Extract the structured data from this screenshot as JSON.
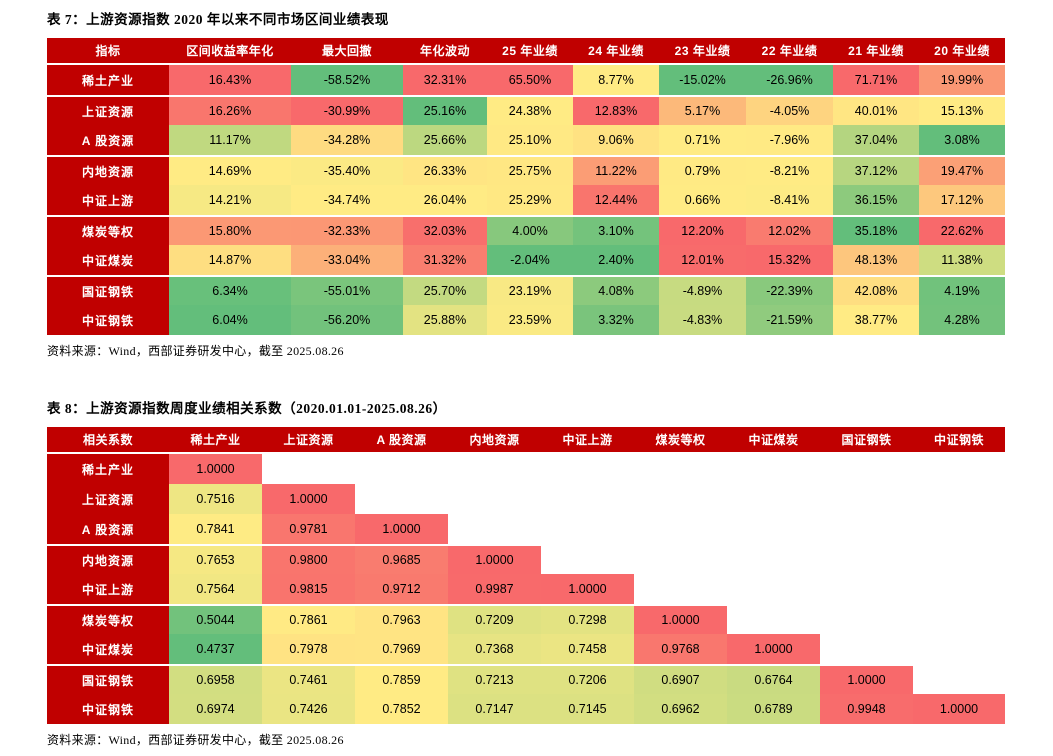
{
  "colors": {
    "header_bg": "#C00000",
    "header_text": "#FFFFFF",
    "cell_text": "#000000",
    "scale_low_green": "#63BE7B",
    "scale_mid_yellow": "#FFEB84",
    "scale_high_red": "#F8696B"
  },
  "table7": {
    "title": "表 7：上游资源指数 2020 年以来不同市场区间业绩表现",
    "source": "资料来源：Wind，西部证券研发中心，截至 2025.08.26",
    "scale_mode": "per-column",
    "columns": [
      "指标",
      "区间收益率年化",
      "最大回撤",
      "年化波动",
      "25 年业绩",
      "24 年业绩",
      "23 年业绩",
      "22 年业绩",
      "21 年业绩",
      "20 年业绩"
    ],
    "group_breaks": [
      1,
      3,
      5,
      7
    ],
    "rows": [
      {
        "label": "稀土产业",
        "cells": [
          "16.43%",
          "-58.52%",
          "32.31%",
          "65.50%",
          "8.77%",
          "-15.02%",
          "-26.96%",
          "71.71%",
          "19.99%"
        ]
      },
      {
        "label": "上证资源",
        "cells": [
          "16.26%",
          "-30.99%",
          "25.16%",
          "24.38%",
          "12.83%",
          "5.17%",
          "-4.05%",
          "40.01%",
          "15.13%"
        ]
      },
      {
        "label": "A 股资源",
        "cells": [
          "11.17%",
          "-34.28%",
          "25.66%",
          "25.10%",
          "9.06%",
          "0.71%",
          "-7.96%",
          "37.04%",
          "3.08%"
        ]
      },
      {
        "label": "内地资源",
        "cells": [
          "14.69%",
          "-35.40%",
          "26.33%",
          "25.75%",
          "11.22%",
          "0.79%",
          "-8.21%",
          "37.12%",
          "19.47%"
        ]
      },
      {
        "label": "中证上游",
        "cells": [
          "14.21%",
          "-34.74%",
          "26.04%",
          "25.29%",
          "12.44%",
          "0.66%",
          "-8.41%",
          "36.15%",
          "17.12%"
        ]
      },
      {
        "label": "煤炭等权",
        "cells": [
          "15.80%",
          "-32.33%",
          "32.03%",
          "4.00%",
          "3.10%",
          "12.20%",
          "12.02%",
          "35.18%",
          "22.62%"
        ]
      },
      {
        "label": "中证煤炭",
        "cells": [
          "14.87%",
          "-33.04%",
          "31.32%",
          "-2.04%",
          "2.40%",
          "12.01%",
          "15.32%",
          "48.13%",
          "11.38%"
        ]
      },
      {
        "label": "国证钢铁",
        "cells": [
          "6.34%",
          "-55.01%",
          "25.70%",
          "23.19%",
          "4.08%",
          "-4.89%",
          "-22.39%",
          "42.08%",
          "4.19%"
        ]
      },
      {
        "label": "中证钢铁",
        "cells": [
          "6.04%",
          "-56.20%",
          "25.88%",
          "23.59%",
          "3.32%",
          "-4.83%",
          "-21.59%",
          "38.77%",
          "4.28%"
        ]
      }
    ]
  },
  "table8": {
    "title": "表 8：上游资源指数周度业绩相关系数（2020.01.01-2025.08.26）",
    "source": "资料来源：Wind，西部证券研发中心，截至 2025.08.26",
    "scale_mode": "matrix",
    "columns": [
      "相关系数",
      "稀土产业",
      "上证资源",
      "A 股资源",
      "内地资源",
      "中证上游",
      "煤炭等权",
      "中证煤炭",
      "国证钢铁",
      "中证钢铁"
    ],
    "group_breaks": [
      3,
      5,
      7
    ],
    "rows": [
      {
        "label": "稀土产业",
        "cells": [
          "1.0000"
        ]
      },
      {
        "label": "上证资源",
        "cells": [
          "0.7516",
          "1.0000"
        ]
      },
      {
        "label": "A 股资源",
        "cells": [
          "0.7841",
          "0.9781",
          "1.0000"
        ]
      },
      {
        "label": "内地资源",
        "cells": [
          "0.7653",
          "0.9800",
          "0.9685",
          "1.0000"
        ]
      },
      {
        "label": "中证上游",
        "cells": [
          "0.7564",
          "0.9815",
          "0.9712",
          "0.9987",
          "1.0000"
        ]
      },
      {
        "label": "煤炭等权",
        "cells": [
          "0.5044",
          "0.7861",
          "0.7963",
          "0.7209",
          "0.7298",
          "1.0000"
        ]
      },
      {
        "label": "中证煤炭",
        "cells": [
          "0.4737",
          "0.7978",
          "0.7969",
          "0.7368",
          "0.7458",
          "0.9768",
          "1.0000"
        ]
      },
      {
        "label": "国证钢铁",
        "cells": [
          "0.6958",
          "0.7461",
          "0.7859",
          "0.7213",
          "0.7206",
          "0.6907",
          "0.6764",
          "1.0000"
        ]
      },
      {
        "label": "中证钢铁",
        "cells": [
          "0.6974",
          "0.7426",
          "0.7852",
          "0.7147",
          "0.7145",
          "0.6962",
          "0.6789",
          "0.9948",
          "1.0000"
        ]
      }
    ]
  }
}
